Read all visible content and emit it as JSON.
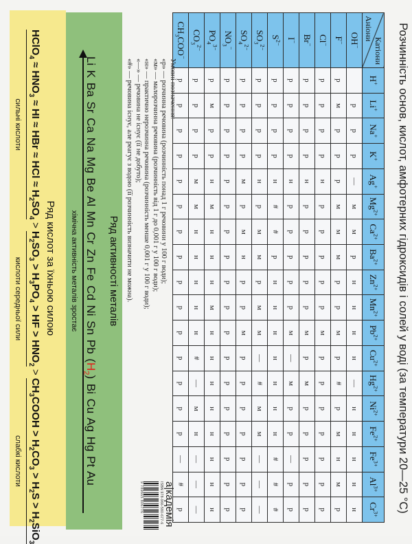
{
  "title": "Розчинність основ, кислот, амфотерних гідроксидів і солей у воді (за температури 20—25 °C)",
  "table": {
    "corner_cations": "Катіони",
    "corner_anions": "Аніони",
    "anions": [
      "OH^−",
      "F^−",
      "Cl^−",
      "Br^−",
      "I^−",
      "S^2−",
      "SO_3^2−",
      "SO_4^2−",
      "NO_3^−",
      "PO_4^3−",
      "CO_3^2−",
      "CH_3COO^−"
    ],
    "cations": [
      {
        "label": "H^+",
        "values": [
          "",
          "р",
          "р",
          "р",
          "р",
          "р",
          "р",
          "р",
          "р",
          "р",
          "р",
          "р"
        ]
      },
      {
        "label": "Li^+",
        "values": [
          "р",
          "м",
          "р",
          "р",
          "р",
          "р",
          "р",
          "р",
          "р",
          "м",
          "р",
          "р"
        ]
      },
      {
        "label": "Na^+",
        "values": [
          "р",
          "р",
          "р",
          "р",
          "р",
          "р",
          "р",
          "р",
          "р",
          "р",
          "р",
          "р"
        ]
      },
      {
        "label": "K^+",
        "values": [
          "р",
          "р",
          "р",
          "р",
          "р",
          "р",
          "р",
          "р",
          "р",
          "р",
          "р",
          "р"
        ]
      },
      {
        "label": "Ag^+",
        "values": [
          "—",
          "р",
          "н",
          "н",
          "н",
          "н",
          "н",
          "м",
          "р",
          "н",
          "м",
          "р"
        ]
      },
      {
        "label": "Mg^2+",
        "values": [
          "м",
          "м",
          "р",
          "р",
          "р",
          "#",
          "р",
          "р",
          "р",
          "м",
          "м",
          "р"
        ]
      },
      {
        "label": "Ca^2+",
        "values": [
          "м",
          "м",
          "р",
          "р",
          "р",
          "#",
          "м",
          "м",
          "р",
          "н",
          "н",
          "р"
        ]
      },
      {
        "label": "Ba^2+",
        "values": [
          "р",
          "м",
          "р",
          "р",
          "р",
          "р",
          "м",
          "н",
          "р",
          "н",
          "н",
          "р"
        ]
      },
      {
        "label": "Zn^2+",
        "values": [
          "н",
          "р",
          "р",
          "р",
          "р",
          "н",
          "р",
          "р",
          "р",
          "н",
          "н",
          "р"
        ]
      },
      {
        "label": "Mn^2+",
        "values": [
          "н",
          "р",
          "р",
          "р",
          "р",
          "н",
          "м",
          "р",
          "р",
          "м",
          "н",
          "р"
        ]
      },
      {
        "label": "Pb^2+",
        "values": [
          "н",
          "м",
          "м",
          "м",
          "м",
          "н",
          "м",
          "м",
          "р",
          "н",
          "н",
          "р"
        ]
      },
      {
        "label": "Cu^2+",
        "values": [
          "н",
          "р",
          "р",
          "р",
          "—",
          "н",
          "—",
          "р",
          "р",
          "н",
          "#",
          "р"
        ]
      },
      {
        "label": "Hg^2+",
        "values": [
          "—",
          "#",
          "р",
          "м",
          "м",
          "н",
          "#",
          "р",
          "р",
          "н",
          "—",
          "р"
        ]
      },
      {
        "label": "Ni^2+",
        "values": [
          "н",
          "р",
          "р",
          "р",
          "р",
          "н",
          "м",
          "р",
          "р",
          "н",
          "м",
          "р"
        ]
      },
      {
        "label": "Fe^2+",
        "values": [
          "н",
          "м",
          "р",
          "р",
          "р",
          "н",
          "м",
          "р",
          "р",
          "н",
          "н",
          "р"
        ]
      },
      {
        "label": "Fe^3+",
        "values": [
          "н",
          "н",
          "р",
          "р",
          "—",
          "#",
          "—",
          "р",
          "р",
          "н",
          "—",
          "—"
        ]
      },
      {
        "label": "Al^3+",
        "values": [
          "н",
          "м",
          "р",
          "р",
          "р",
          "#",
          "—",
          "р",
          "р",
          "н",
          "—",
          "#"
        ]
      },
      {
        "label": "Cr^3+",
        "values": [
          "н",
          "р",
          "р",
          "р",
          "р",
          "#",
          "—",
          "р",
          "р",
          "н",
          "—",
          "р"
        ]
      }
    ]
  },
  "legend": {
    "heading": "Умовні позначення:",
    "items": [
      "«р» — розчинна речовина (розчинність понад 1 г речовини у 100 г води);",
      "«м» — малорозчинна речовина (розчинність від 1 г до 0,001 г у 100 г води);",
      "«н» — практично нерозчинна речовина (розчинність менше 0,001 г у 100 г води);",
      "«—» — речовина не існує (її не добуто);",
      "«#» — речовина існує, але реагує з водою (її розчинність визначити не можна)."
    ]
  },
  "publisher": {
    "logo": "а|кадемія",
    "isbn": "ISBN 978-966-580-677-6",
    "barcode_digits": "9 789665 806776"
  },
  "metals": {
    "title": "Ряд активності металів",
    "series_before": "Li K Ba Sr Ca Na Mg Be Al Mn Cr Zn Fe Cd Ni Sn Pb",
    "hydrogen": "H_2",
    "series_after": "Bi Cu Ag Hg Pt Au",
    "caption": "хімічна активність металів зростає",
    "hydrogen_color": "#e0201c"
  },
  "acids": {
    "title": "Ряд кислот за їхньою силою",
    "groups": [
      {
        "formula": "HClO_4 ≈ HNO_3 ≈ HI ≈ HBr ≈ HCl ≈ H_2SO_4",
        "label": "сильні кислоти"
      },
      {
        "formula": "H_2SO_3 > H_3PO_4 > HF > HNO_2",
        "label": "кислоти середньої сили"
      },
      {
        "formula": "CH_3COOH > H_2CO_3 > H_2S > H_2SiO_3",
        "label": "слабкі кислоти"
      }
    ],
    "separator": ">"
  },
  "colors": {
    "header_blue": "#7dc3ec",
    "metals_green": "#8fc07c",
    "acids_yellow": "#f6e98e"
  }
}
